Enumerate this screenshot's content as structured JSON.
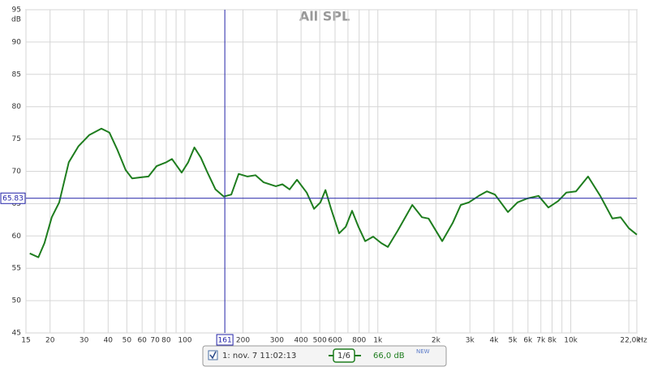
{
  "chart_data": {
    "type": "line",
    "title": "All SPL",
    "y_unit": "dB",
    "x_unit": "Hz",
    "log_x": true,
    "grid": true,
    "xlim": [
      15,
      22000
    ],
    "ylim": [
      45,
      95
    ],
    "yticks": [
      45,
      50,
      55,
      60,
      65,
      70,
      75,
      80,
      85,
      90,
      95
    ],
    "xticks": [
      15,
      20,
      30,
      40,
      50,
      60,
      70,
      80,
      100,
      200,
      300,
      400,
      500,
      600,
      800,
      {
        "value": 1000,
        "label": "1k"
      },
      {
        "value": 2000,
        "label": "2k"
      },
      {
        "value": 3000,
        "label": "3k"
      },
      {
        "value": 4000,
        "label": "4k"
      },
      {
        "value": 5000,
        "label": "5k"
      },
      {
        "value": 6000,
        "label": "6k"
      },
      {
        "value": 7000,
        "label": "7k"
      },
      {
        "value": 8000,
        "label": "8k"
      },
      {
        "value": 10000,
        "label": "10k"
      },
      {
        "value": 22000,
        "label": "22,0k"
      }
    ],
    "x_minor_grid": [
      90,
      700,
      900,
      9000,
      20000
    ],
    "cursor": {
      "x": 161,
      "y": 65.83
    },
    "x": [
      15.7,
      17.4,
      18.7,
      20.4,
      22.3,
      25.0,
      28.1,
      31.9,
      36.9,
      40.6,
      44.7,
      49.3,
      53.3,
      59.9,
      64.7,
      71.3,
      80.1,
      85.7,
      96.2,
      104,
      112,
      121,
      131,
      144,
      159,
      174,
      190,
      211,
      232,
      256,
      296,
      320,
      349,
      381,
      428,
      467,
      504,
      535,
      572,
      630,
      681,
      735,
      794,
      859,
      946,
      1042,
      1127,
      1267,
      1508,
      1694,
      1832,
      2156,
      2443,
      2692,
      2965,
      3335,
      3673,
      4046,
      4723,
      5300,
      5955,
      6813,
      7655,
      8605,
      9477,
      10640,
      12295,
      14220,
      16440,
      18130,
      19980,
      22000
    ],
    "series": [
      {
        "name": "1: nov. 7 11:02:13",
        "color": "#1e7d1e",
        "smoothing": "1/6",
        "level": "66,0 dB",
        "badge": "NEW",
        "values": [
          57.3,
          56.7,
          58.9,
          62.9,
          65.2,
          71.4,
          73.9,
          75.6,
          76.6,
          76.0,
          73.3,
          70.2,
          68.9,
          69.1,
          69.2,
          70.8,
          71.4,
          71.9,
          69.8,
          71.4,
          73.7,
          72.1,
          69.8,
          67.2,
          66.1,
          66.4,
          69.6,
          69.2,
          69.4,
          68.3,
          67.7,
          68.0,
          67.2,
          68.7,
          66.7,
          64.2,
          65.2,
          67.1,
          64.2,
          60.4,
          61.4,
          63.9,
          61.4,
          59.2,
          59.9,
          58.9,
          58.3,
          60.8,
          64.8,
          62.9,
          62.7,
          59.2,
          62.0,
          64.8,
          65.2,
          66.2,
          66.9,
          66.4,
          63.7,
          65.2,
          65.8,
          66.2,
          64.4,
          65.4,
          66.7,
          66.9,
          69.2,
          66.2,
          62.7,
          62.9,
          61.2,
          60.2
        ]
      }
    ]
  }
}
